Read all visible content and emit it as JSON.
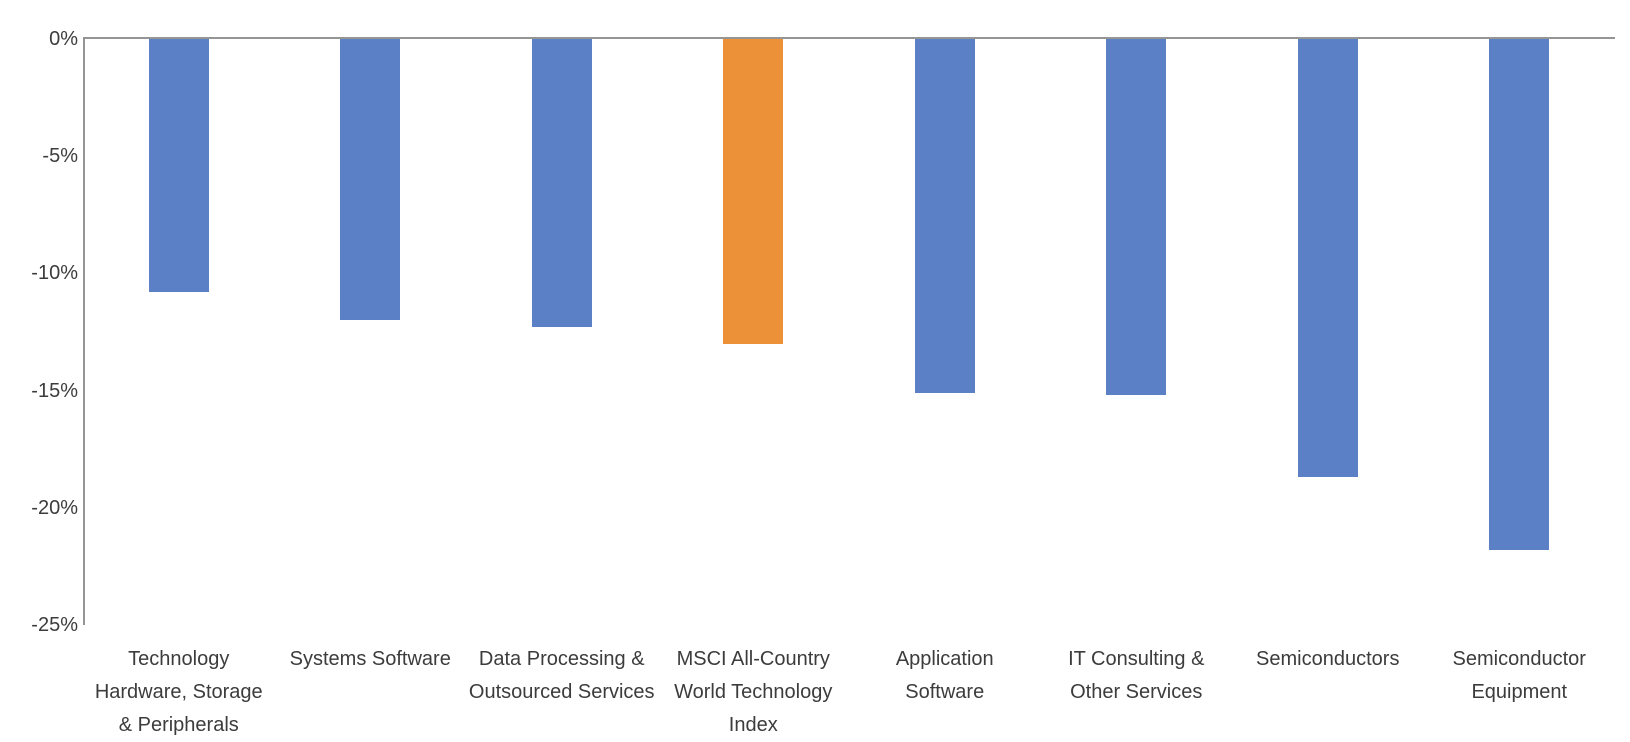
{
  "chart_data": {
    "type": "bar",
    "title": "",
    "xlabel": "",
    "ylabel": "",
    "categories": [
      "Technology\nHardware, Storage\n& Peripherals",
      "Systems Software",
      "Data Processing &\nOutsourced Services",
      "MSCI All-Country\nWorld Technology\nIndex",
      "Application\nSoftware",
      "IT Consulting &\nOther Services",
      "Semiconductors",
      "Semiconductor\nEquipment"
    ],
    "values": [
      -10.8,
      -12.0,
      -12.3,
      -13.0,
      -15.1,
      -15.2,
      -18.7,
      -21.8
    ],
    "value_unit": "%",
    "highlight_index": 3,
    "ylim": [
      -25,
      0
    ],
    "yticks": [
      0,
      -5,
      -10,
      -15,
      -20,
      -25
    ],
    "ytick_labels": [
      "0%",
      "-5%",
      "-10%",
      "-15%",
      "-20%",
      "-25%"
    ],
    "grid": false,
    "legend": "none",
    "colors": {
      "bar": "#5B80C6",
      "highlight": "#EC9138",
      "axis": "#959595",
      "text": "#3C3C3C"
    }
  }
}
